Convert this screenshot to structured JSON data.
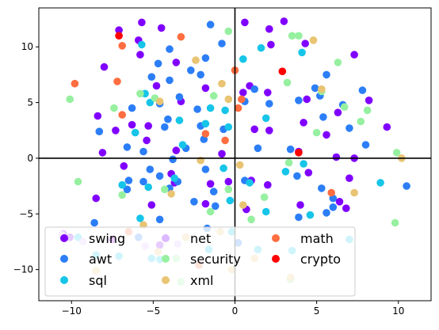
{
  "chart_data": {
    "type": "scatter",
    "title": "",
    "xlabel": "",
    "ylabel": "",
    "xlim": [
      -12,
      12
    ],
    "ylim": [
      -12.8,
      13.5
    ],
    "x_ticks": [
      -10,
      -5,
      0,
      5,
      10
    ],
    "y_ticks": [
      -10,
      -5,
      0,
      5,
      10
    ],
    "tick_labels_x": [
      "−10",
      "−5",
      "0",
      "5",
      "10"
    ],
    "tick_labels_y": [
      "−10",
      "−5",
      "0",
      "5",
      "10"
    ],
    "grid": false,
    "reference_lines": {
      "x": 0,
      "y": 0
    },
    "legend_position": "lower-left",
    "series": [
      {
        "name": "swing",
        "color": "#8000ff",
        "points": [
          [
            -7.1,
            11.5
          ],
          [
            -5.9,
            10.6
          ],
          [
            -5.7,
            12.2
          ],
          [
            -4.5,
            11.7
          ],
          [
            0.6,
            12.2
          ],
          [
            2.1,
            11.6
          ],
          [
            3.0,
            12.3
          ],
          [
            2.2,
            10.2
          ],
          [
            4.3,
            10.3
          ],
          [
            7.3,
            9.3
          ],
          [
            -8.0,
            8.2
          ],
          [
            -5.8,
            9.3
          ],
          [
            -3.6,
            8.6
          ],
          [
            -4.8,
            6.5
          ],
          [
            -3.3,
            5.1
          ],
          [
            -1.8,
            6.3
          ],
          [
            0.9,
            6.5
          ],
          [
            0.5,
            5.9
          ],
          [
            2.0,
            5.9
          ],
          [
            4.4,
            5.3
          ],
          [
            -8.4,
            3.8
          ],
          [
            -6.3,
            3.0
          ],
          [
            -7.3,
            2.5
          ],
          [
            -5.3,
            2.9
          ],
          [
            -5.4,
            1.6
          ],
          [
            -8.1,
            0.5
          ],
          [
            -3.6,
            0.7
          ],
          [
            -0.8,
            0.4
          ],
          [
            1.2,
            2.6
          ],
          [
            2.1,
            2.5
          ],
          [
            4.2,
            3.2
          ],
          [
            5.6,
            2.1
          ],
          [
            6.3,
            4.1
          ],
          [
            8.2,
            5.2
          ],
          [
            9.3,
            2.8
          ],
          [
            3.9,
            0.6
          ],
          [
            6.2,
            0.1
          ],
          [
            7.3,
            0.0
          ],
          [
            -6.8,
            -0.7
          ],
          [
            -3.9,
            -1.4
          ],
          [
            -3.7,
            -2.2
          ],
          [
            -1.5,
            -2.3
          ],
          [
            -0.4,
            -2.1
          ],
          [
            1.0,
            -2.0
          ],
          [
            2.0,
            -2.4
          ],
          [
            4.5,
            -1.3
          ],
          [
            7.0,
            -1.8
          ],
          [
            -8.5,
            -3.6
          ],
          [
            -5.1,
            -4.2
          ],
          [
            -1.8,
            -4.1
          ],
          [
            0.7,
            -4.6
          ],
          [
            4.0,
            -4.2
          ],
          [
            6.4,
            -3.9
          ],
          [
            6.8,
            -4.5
          ],
          [
            -10.5,
            -6.8
          ],
          [
            -10.1,
            -7.1
          ],
          [
            -7.5,
            -7.3
          ],
          [
            -4.6,
            -7.8
          ]
        ]
      },
      {
        "name": "awt",
        "color": "#2c7ef7",
        "points": [
          [
            -4.0,
            9.8
          ],
          [
            -1.5,
            12.0
          ],
          [
            -0.8,
            10.3
          ],
          [
            -1.8,
            9.0
          ],
          [
            -4.7,
            8.5
          ],
          [
            -5.1,
            7.3
          ],
          [
            -4.0,
            7.0
          ],
          [
            -2.7,
            7.9
          ],
          [
            -2.1,
            7.5
          ],
          [
            -3.4,
            5.5
          ],
          [
            -4.6,
            4.9
          ],
          [
            -4.1,
            3.5
          ],
          [
            -2.3,
            4.4
          ],
          [
            -4.3,
            2.8
          ],
          [
            -2.1,
            2.9
          ],
          [
            -1.9,
            1.7
          ],
          [
            -3.0,
            0.9
          ],
          [
            -0.7,
            2.6
          ],
          [
            -6.3,
            4.5
          ],
          [
            -8.3,
            2.4
          ],
          [
            1.2,
            6.2
          ],
          [
            3.9,
            5.2
          ],
          [
            5.6,
            7.5
          ],
          [
            4.9,
            6.3
          ],
          [
            5.2,
            5.6
          ],
          [
            5.4,
            3.7
          ],
          [
            6.6,
            4.8
          ],
          [
            7.8,
            6.1
          ],
          [
            7.0,
            2.7
          ],
          [
            8.0,
            1.2
          ],
          [
            2.1,
            4.9
          ],
          [
            0.6,
            5.1
          ],
          [
            1.4,
            0.9
          ],
          [
            3.4,
            0.8
          ],
          [
            -5.6,
            0.6
          ],
          [
            -6.6,
            1.0
          ],
          [
            -3.8,
            -0.1
          ],
          [
            -5.2,
            -1.0
          ],
          [
            -4.6,
            -1.6
          ],
          [
            -3.5,
            -2.1
          ],
          [
            -1.8,
            -1.0
          ],
          [
            -1.3,
            -3.0
          ],
          [
            -1.2,
            -4.3
          ],
          [
            0.6,
            -2.0
          ],
          [
            3.8,
            -1.6
          ],
          [
            5.3,
            -2.7
          ],
          [
            6.0,
            -3.6
          ],
          [
            6.0,
            -4.4
          ],
          [
            10.5,
            -2.5
          ],
          [
            -6.5,
            -2.0
          ],
          [
            -6.6,
            -2.8
          ],
          [
            -5.6,
            -2.1
          ],
          [
            -4.0,
            -2.7
          ],
          [
            -2.5,
            -3.9
          ],
          [
            -8.6,
            -5.8
          ],
          [
            -4.6,
            -5.5
          ],
          [
            -5.9,
            -7.1
          ],
          [
            -1.7,
            -6.3
          ],
          [
            0.2,
            -7.6
          ],
          [
            3.9,
            -5.3
          ],
          [
            5.6,
            -4.9
          ]
        ]
      },
      {
        "name": "sql",
        "color": "#16c5e8",
        "points": [
          [
            -5.7,
            10.2
          ],
          [
            0.5,
            8.9
          ],
          [
            1.6,
            9.9
          ],
          [
            4.1,
            9.5
          ],
          [
            -5.5,
            5.8
          ],
          [
            -5.2,
            5.0
          ],
          [
            -3.4,
            3.4
          ],
          [
            -0.6,
            4.3
          ],
          [
            -0.4,
            2.8
          ],
          [
            -1.8,
            3.1
          ],
          [
            -6.1,
            2.3
          ],
          [
            -3.2,
            1.2
          ],
          [
            1.9,
            3.6
          ],
          [
            -1.5,
            4.5
          ],
          [
            -0.7,
            -0.9
          ],
          [
            -0.3,
            -3.8
          ],
          [
            0.9,
            -2.2
          ],
          [
            -3.7,
            -1.8
          ],
          [
            -6.9,
            -2.4
          ],
          [
            -5.8,
            -5.4
          ],
          [
            -5.3,
            -2.6
          ],
          [
            8.9,
            -2.2
          ],
          [
            4.2,
            -0.5
          ],
          [
            3.1,
            -1.2
          ],
          [
            1.9,
            -4.8
          ],
          [
            4.6,
            -5.1
          ],
          [
            -9.6,
            -7.1
          ],
          [
            -8.5,
            -8.7
          ],
          [
            -7.1,
            -8.8
          ],
          [
            -5.1,
            -9.0
          ],
          [
            -4.6,
            -9.1
          ],
          [
            1.4,
            -8.2
          ],
          [
            3.5,
            -8.3
          ],
          [
            7.0,
            -7.3
          ],
          [
            -1.6,
            -8.2
          ],
          [
            -0.2,
            -6.6
          ]
        ]
      },
      {
        "name": "net",
        "color": "#dcb8ff",
        "points": [
          [
            -10.6,
            -6.9
          ],
          [
            -9.3,
            -7.5
          ],
          [
            -5.5,
            -7.9
          ],
          [
            -3.5,
            -7.7
          ]
        ]
      },
      {
        "name": "security",
        "color": "#96f0a0",
        "points": [
          [
            -0.4,
            11.4
          ],
          [
            3.5,
            11.0
          ],
          [
            3.9,
            11.0
          ],
          [
            6.3,
            8.6
          ],
          [
            -4.9,
            5.4
          ],
          [
            -1.3,
            5.6
          ],
          [
            -5.8,
            5.8
          ],
          [
            -7.4,
            4.5
          ],
          [
            -10.1,
            5.3
          ],
          [
            -9.6,
            -2.1
          ],
          [
            -6.9,
            -3.3
          ],
          [
            -4.3,
            -2.8
          ],
          [
            -1.5,
            -4.8
          ],
          [
            -0.4,
            -2.8
          ],
          [
            3.3,
            -0.4
          ],
          [
            1.8,
            -3.5
          ],
          [
            5.0,
            2.3
          ],
          [
            6.7,
            4.6
          ],
          [
            8.1,
            4.3
          ],
          [
            7.7,
            3.3
          ],
          [
            3.2,
            6.8
          ],
          [
            5.3,
            6.0
          ],
          [
            9.9,
            0.5
          ],
          [
            9.8,
            -5.8
          ],
          [
            1.0,
            -5.5
          ],
          [
            3.4,
            -10.9
          ],
          [
            -3.3,
            -11.1
          ],
          [
            -3.6,
            -9.0
          ]
        ]
      },
      {
        "name": "xml",
        "color": "#e8c473",
        "points": [
          [
            -2.4,
            8.8
          ],
          [
            -0.8,
            6.7
          ],
          [
            -0.4,
            5.3
          ],
          [
            -4.6,
            5.1
          ],
          [
            -2.1,
            -0.2
          ],
          [
            -3.9,
            -3.2
          ],
          [
            0.3,
            -0.6
          ],
          [
            0.5,
            -4.2
          ],
          [
            10.2,
            0.0
          ],
          [
            4.8,
            10.6
          ],
          [
            5.3,
            6.2
          ],
          [
            7.3,
            -3.1
          ],
          [
            -5.6,
            -6.0
          ],
          [
            -3.0,
            -7.1
          ],
          [
            -0.9,
            -6.6
          ],
          [
            -8.5,
            -10.1
          ],
          [
            -4.7,
            -8.4
          ],
          [
            -0.2,
            -10.0
          ],
          [
            1.2,
            -9.0
          ],
          [
            3.4,
            -10.7
          ]
        ]
      },
      {
        "name": "math",
        "color": "#ff6e40",
        "points": [
          [
            -6.9,
            10.1
          ],
          [
            -3.3,
            10.9
          ],
          [
            0.0,
            7.9
          ],
          [
            -9.8,
            6.7
          ],
          [
            -7.2,
            6.9
          ],
          [
            -6.9,
            3.9
          ],
          [
            -1.8,
            2.2
          ],
          [
            0.4,
            5.3
          ],
          [
            0.2,
            4.5
          ],
          [
            -0.6,
            1.6
          ],
          [
            5.9,
            -3.1
          ],
          [
            -6.5,
            -6.6
          ],
          [
            -2.2,
            -9.6
          ]
        ]
      },
      {
        "name": "crypto",
        "color": "#ff0000",
        "points": [
          [
            -7.1,
            11.0
          ],
          [
            2.9,
            7.8
          ],
          [
            3.9,
            0.5
          ]
        ]
      }
    ]
  }
}
